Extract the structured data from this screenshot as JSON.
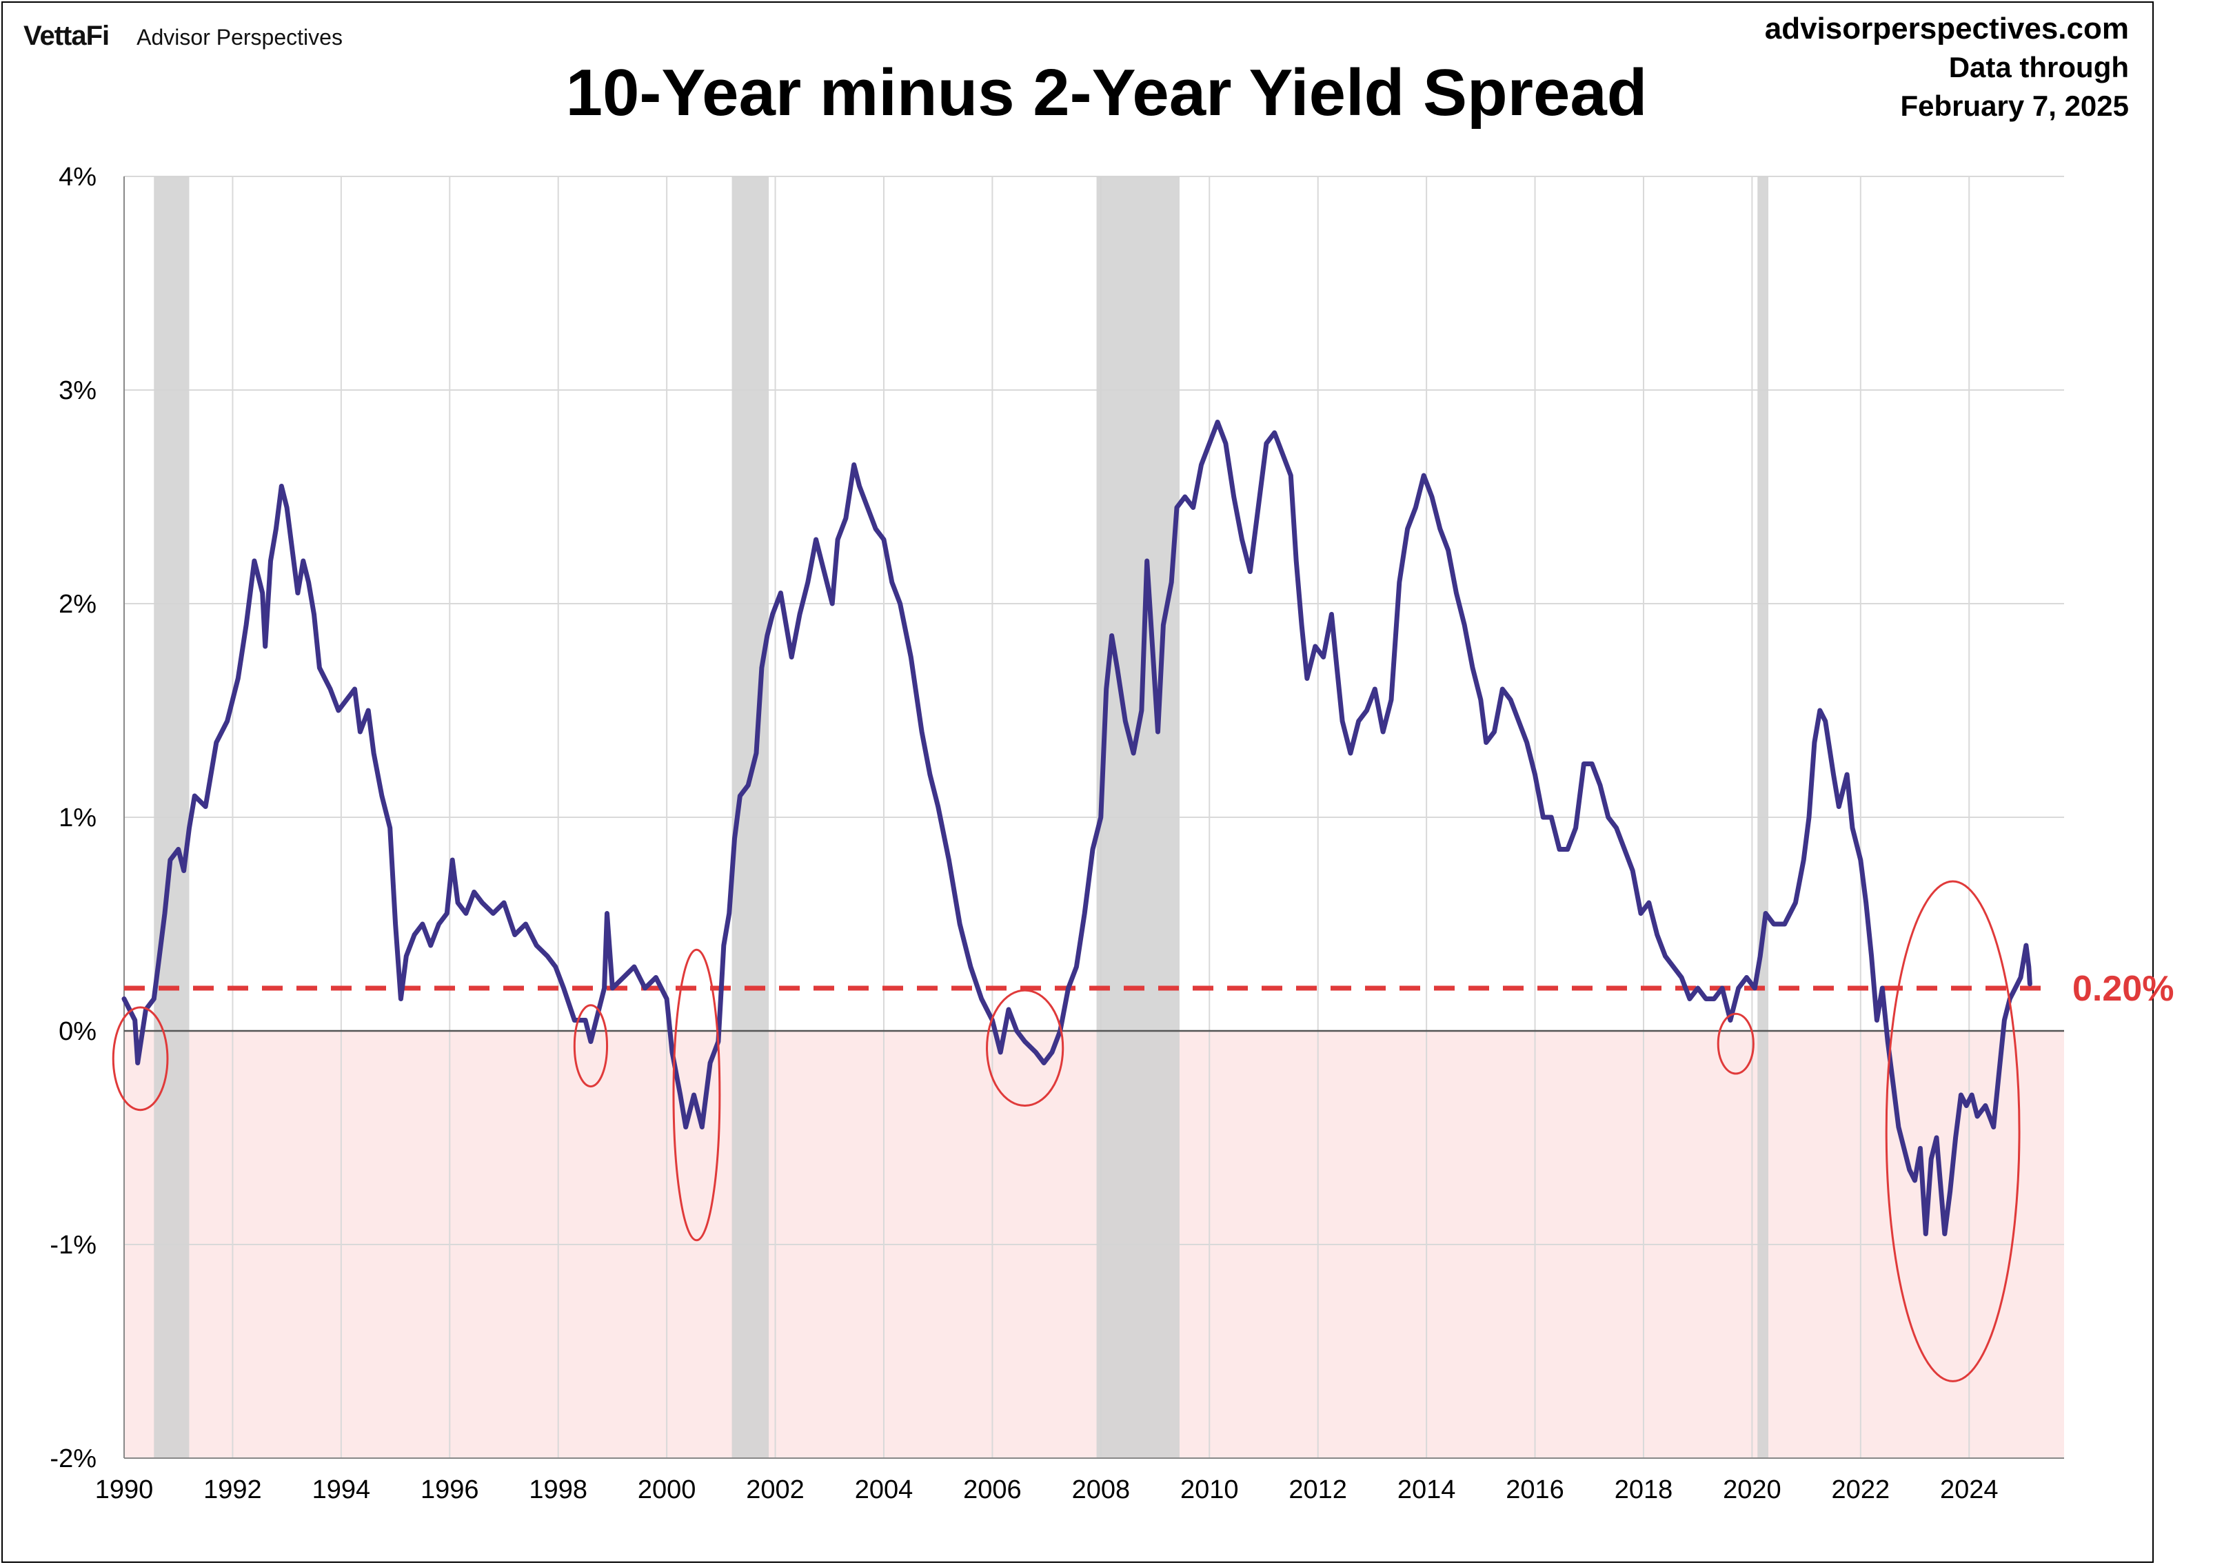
{
  "header": {
    "brand_logo": "VettaFi",
    "brand_name": "Advisor Perspectives",
    "title": "10-Year minus 2-Year Yield Spread",
    "source_site": "advisorperspectives.com",
    "source_line2": "Data through",
    "source_line3": "February 7, 2025"
  },
  "colors": {
    "line": "#3d3389",
    "reference": "#e03a3a",
    "recession": "#d3d3d3",
    "negative_zone": "#fde9e9",
    "grid": "#d9d9d9",
    "circle": "#e03a3a"
  },
  "chart_data": {
    "type": "line",
    "title": "10-Year minus 2-Year Yield Spread",
    "xlabel": "",
    "ylabel": "",
    "xlim": [
      1990.0,
      2025.75
    ],
    "ylim": [
      -2,
      4
    ],
    "x_ticks": [
      1990,
      1992,
      1994,
      1996,
      1998,
      2000,
      2002,
      2004,
      2006,
      2008,
      2010,
      2012,
      2014,
      2016,
      2018,
      2020,
      2022,
      2024
    ],
    "x_tick_labels": [
      "1990",
      "1992",
      "1994",
      "1996",
      "1998",
      "2000",
      "2002",
      "2004",
      "2006",
      "2008",
      "2010",
      "2012",
      "2014",
      "2016",
      "2018",
      "2020",
      "2022",
      "2024"
    ],
    "y_ticks": [
      -2,
      -1,
      0,
      1,
      2,
      3,
      4
    ],
    "y_tick_labels": [
      "-2%",
      "-1%",
      "0%",
      "1%",
      "2%",
      "3%",
      "4%"
    ],
    "grid": true,
    "reference_line": {
      "value": 0.2,
      "label": "0.20%"
    },
    "negative_shading": [
      -2,
      0
    ],
    "recessions": [
      {
        "start": 1990.55,
        "end": 1991.2
      },
      {
        "start": 2001.2,
        "end": 2001.88
      },
      {
        "start": 2007.92,
        "end": 2009.45
      },
      {
        "start": 2020.1,
        "end": 2020.3
      }
    ],
    "highlight_circles": [
      {
        "cx": 1990.3,
        "cy": -0.13,
        "rx": 1.0,
        "ry": 0.24
      },
      {
        "cx": 1998.6,
        "cy": -0.07,
        "rx": 0.6,
        "ry": 0.19
      },
      {
        "cx": 2000.55,
        "cy": -0.3,
        "rx": 0.85,
        "ry": 0.68
      },
      {
        "cx": 2006.6,
        "cy": -0.08,
        "rx": 1.4,
        "ry": 0.27
      },
      {
        "cx": 2019.7,
        "cy": -0.06,
        "rx": 0.65,
        "ry": 0.14
      },
      {
        "cx": 2023.7,
        "cy": -0.47,
        "rx": 2.45,
        "ry": 1.17
      }
    ],
    "series": [
      {
        "values": [
          [
            1990.0,
            0.15
          ],
          [
            1990.2,
            0.05
          ],
          [
            1990.25,
            -0.15
          ],
          [
            1990.4,
            0.1
          ],
          [
            1990.55,
            0.15
          ],
          [
            1990.65,
            0.35
          ],
          [
            1990.75,
            0.55
          ],
          [
            1990.85,
            0.8
          ],
          [
            1991.0,
            0.85
          ],
          [
            1991.1,
            0.75
          ],
          [
            1991.2,
            0.95
          ],
          [
            1991.3,
            1.1
          ],
          [
            1991.5,
            1.05
          ],
          [
            1991.7,
            1.35
          ],
          [
            1991.9,
            1.45
          ],
          [
            1992.1,
            1.65
          ],
          [
            1992.25,
            1.9
          ],
          [
            1992.4,
            2.2
          ],
          [
            1992.55,
            2.05
          ],
          [
            1992.6,
            1.8
          ],
          [
            1992.7,
            2.2
          ],
          [
            1992.8,
            2.35
          ],
          [
            1992.9,
            2.55
          ],
          [
            1993.0,
            2.45
          ],
          [
            1993.1,
            2.25
          ],
          [
            1993.2,
            2.05
          ],
          [
            1993.3,
            2.2
          ],
          [
            1993.4,
            2.1
          ],
          [
            1993.5,
            1.95
          ],
          [
            1993.6,
            1.7
          ],
          [
            1993.7,
            1.65
          ],
          [
            1993.8,
            1.6
          ],
          [
            1993.95,
            1.5
          ],
          [
            1994.1,
            1.55
          ],
          [
            1994.25,
            1.6
          ],
          [
            1994.35,
            1.4
          ],
          [
            1994.5,
            1.5
          ],
          [
            1994.6,
            1.3
          ],
          [
            1994.75,
            1.1
          ],
          [
            1994.9,
            0.95
          ],
          [
            1995.0,
            0.5
          ],
          [
            1995.1,
            0.15
          ],
          [
            1995.2,
            0.35
          ],
          [
            1995.35,
            0.45
          ],
          [
            1995.5,
            0.5
          ],
          [
            1995.65,
            0.4
          ],
          [
            1995.8,
            0.5
          ],
          [
            1995.95,
            0.55
          ],
          [
            1996.05,
            0.8
          ],
          [
            1996.15,
            0.6
          ],
          [
            1996.3,
            0.55
          ],
          [
            1996.45,
            0.65
          ],
          [
            1996.6,
            0.6
          ],
          [
            1996.8,
            0.55
          ],
          [
            1997.0,
            0.6
          ],
          [
            1997.2,
            0.45
          ],
          [
            1997.4,
            0.5
          ],
          [
            1997.6,
            0.4
          ],
          [
            1997.8,
            0.35
          ],
          [
            1997.95,
            0.3
          ],
          [
            1998.1,
            0.2
          ],
          [
            1998.3,
            0.05
          ],
          [
            1998.5,
            0.05
          ],
          [
            1998.6,
            -0.05
          ],
          [
            1998.75,
            0.1
          ],
          [
            1998.85,
            0.2
          ],
          [
            1998.9,
            0.55
          ],
          [
            1999.0,
            0.2
          ],
          [
            1999.2,
            0.25
          ],
          [
            1999.4,
            0.3
          ],
          [
            1999.6,
            0.2
          ],
          [
            1999.8,
            0.25
          ],
          [
            2000.0,
            0.15
          ],
          [
            2000.1,
            -0.1
          ],
          [
            2000.25,
            -0.3
          ],
          [
            2000.35,
            -0.45
          ],
          [
            2000.5,
            -0.3
          ],
          [
            2000.65,
            -0.45
          ],
          [
            2000.8,
            -0.15
          ],
          [
            2000.95,
            -0.05
          ],
          [
            2001.05,
            0.4
          ],
          [
            2001.15,
            0.55
          ],
          [
            2001.25,
            0.9
          ],
          [
            2001.35,
            1.1
          ],
          [
            2001.5,
            1.15
          ],
          [
            2001.65,
            1.3
          ],
          [
            2001.75,
            1.7
          ],
          [
            2001.85,
            1.85
          ],
          [
            2001.95,
            1.95
          ],
          [
            2002.1,
            2.05
          ],
          [
            2002.2,
            1.9
          ],
          [
            2002.3,
            1.75
          ],
          [
            2002.45,
            1.95
          ],
          [
            2002.6,
            2.1
          ],
          [
            2002.75,
            2.3
          ],
          [
            2002.9,
            2.15
          ],
          [
            2003.05,
            2.0
          ],
          [
            2003.15,
            2.3
          ],
          [
            2003.3,
            2.4
          ],
          [
            2003.45,
            2.65
          ],
          [
            2003.55,
            2.55
          ],
          [
            2003.7,
            2.45
          ],
          [
            2003.85,
            2.35
          ],
          [
            2004.0,
            2.3
          ],
          [
            2004.15,
            2.1
          ],
          [
            2004.3,
            2.0
          ],
          [
            2004.5,
            1.75
          ],
          [
            2004.7,
            1.4
          ],
          [
            2004.85,
            1.2
          ],
          [
            2005.0,
            1.05
          ],
          [
            2005.2,
            0.8
          ],
          [
            2005.4,
            0.5
          ],
          [
            2005.6,
            0.3
          ],
          [
            2005.8,
            0.15
          ],
          [
            2006.0,
            0.05
          ],
          [
            2006.15,
            -0.1
          ],
          [
            2006.3,
            0.1
          ],
          [
            2006.45,
            0.0
          ],
          [
            2006.6,
            -0.05
          ],
          [
            2006.8,
            -0.1
          ],
          [
            2006.95,
            -0.15
          ],
          [
            2007.1,
            -0.1
          ],
          [
            2007.25,
            0.0
          ],
          [
            2007.4,
            0.2
          ],
          [
            2007.55,
            0.3
          ],
          [
            2007.7,
            0.55
          ],
          [
            2007.85,
            0.85
          ],
          [
            2008.0,
            1.0
          ],
          [
            2008.1,
            1.6
          ],
          [
            2008.2,
            1.85
          ],
          [
            2008.3,
            1.7
          ],
          [
            2008.45,
            1.45
          ],
          [
            2008.6,
            1.3
          ],
          [
            2008.75,
            1.5
          ],
          [
            2008.85,
            2.2
          ],
          [
            2008.95,
            1.8
          ],
          [
            2009.05,
            1.4
          ],
          [
            2009.15,
            1.9
          ],
          [
            2009.3,
            2.1
          ],
          [
            2009.4,
            2.45
          ],
          [
            2009.55,
            2.5
          ],
          [
            2009.7,
            2.45
          ],
          [
            2009.85,
            2.65
          ],
          [
            2010.0,
            2.75
          ],
          [
            2010.15,
            2.85
          ],
          [
            2010.3,
            2.75
          ],
          [
            2010.45,
            2.5
          ],
          [
            2010.6,
            2.3
          ],
          [
            2010.75,
            2.15
          ],
          [
            2010.9,
            2.45
          ],
          [
            2011.05,
            2.75
          ],
          [
            2011.2,
            2.8
          ],
          [
            2011.35,
            2.7
          ],
          [
            2011.5,
            2.6
          ],
          [
            2011.6,
            2.2
          ],
          [
            2011.7,
            1.9
          ],
          [
            2011.8,
            1.65
          ],
          [
            2011.95,
            1.8
          ],
          [
            2012.1,
            1.75
          ],
          [
            2012.25,
            1.95
          ],
          [
            2012.35,
            1.7
          ],
          [
            2012.45,
            1.45
          ],
          [
            2012.6,
            1.3
          ],
          [
            2012.75,
            1.45
          ],
          [
            2012.9,
            1.5
          ],
          [
            2013.05,
            1.6
          ],
          [
            2013.2,
            1.4
          ],
          [
            2013.35,
            1.55
          ],
          [
            2013.5,
            2.1
          ],
          [
            2013.65,
            2.35
          ],
          [
            2013.8,
            2.45
          ],
          [
            2013.95,
            2.6
          ],
          [
            2014.1,
            2.5
          ],
          [
            2014.25,
            2.35
          ],
          [
            2014.4,
            2.25
          ],
          [
            2014.55,
            2.05
          ],
          [
            2014.7,
            1.9
          ],
          [
            2014.85,
            1.7
          ],
          [
            2015.0,
            1.55
          ],
          [
            2015.1,
            1.35
          ],
          [
            2015.25,
            1.4
          ],
          [
            2015.4,
            1.6
          ],
          [
            2015.55,
            1.55
          ],
          [
            2015.7,
            1.45
          ],
          [
            2015.85,
            1.35
          ],
          [
            2016.0,
            1.2
          ],
          [
            2016.15,
            1.0
          ],
          [
            2016.3,
            1.0
          ],
          [
            2016.45,
            0.85
          ],
          [
            2016.6,
            0.85
          ],
          [
            2016.75,
            0.95
          ],
          [
            2016.9,
            1.25
          ],
          [
            2017.05,
            1.25
          ],
          [
            2017.2,
            1.15
          ],
          [
            2017.35,
            1.0
          ],
          [
            2017.5,
            0.95
          ],
          [
            2017.65,
            0.85
          ],
          [
            2017.8,
            0.75
          ],
          [
            2017.95,
            0.55
          ],
          [
            2018.1,
            0.6
          ],
          [
            2018.25,
            0.45
          ],
          [
            2018.4,
            0.35
          ],
          [
            2018.55,
            0.3
          ],
          [
            2018.7,
            0.25
          ],
          [
            2018.85,
            0.15
          ],
          [
            2019.0,
            0.2
          ],
          [
            2019.15,
            0.15
          ],
          [
            2019.3,
            0.15
          ],
          [
            2019.45,
            0.2
          ],
          [
            2019.6,
            0.05
          ],
          [
            2019.75,
            0.2
          ],
          [
            2019.9,
            0.25
          ],
          [
            2020.05,
            0.2
          ],
          [
            2020.15,
            0.35
          ],
          [
            2020.25,
            0.55
          ],
          [
            2020.4,
            0.5
          ],
          [
            2020.6,
            0.5
          ],
          [
            2020.8,
            0.6
          ],
          [
            2020.95,
            0.8
          ],
          [
            2021.05,
            1.0
          ],
          [
            2021.15,
            1.35
          ],
          [
            2021.25,
            1.5
          ],
          [
            2021.35,
            1.45
          ],
          [
            2021.5,
            1.2
          ],
          [
            2021.6,
            1.05
          ],
          [
            2021.75,
            1.2
          ],
          [
            2021.85,
            0.95
          ],
          [
            2022.0,
            0.8
          ],
          [
            2022.1,
            0.6
          ],
          [
            2022.2,
            0.35
          ],
          [
            2022.3,
            0.05
          ],
          [
            2022.4,
            0.2
          ],
          [
            2022.5,
            -0.05
          ],
          [
            2022.6,
            -0.25
          ],
          [
            2022.7,
            -0.45
          ],
          [
            2022.8,
            -0.55
          ],
          [
            2022.9,
            -0.65
          ],
          [
            2023.0,
            -0.7
          ],
          [
            2023.1,
            -0.55
          ],
          [
            2023.2,
            -0.95
          ],
          [
            2023.3,
            -0.6
          ],
          [
            2023.4,
            -0.5
          ],
          [
            2023.55,
            -0.95
          ],
          [
            2023.65,
            -0.75
          ],
          [
            2023.75,
            -0.5
          ],
          [
            2023.85,
            -0.3
          ],
          [
            2023.95,
            -0.35
          ],
          [
            2024.05,
            -0.3
          ],
          [
            2024.15,
            -0.4
          ],
          [
            2024.3,
            -0.35
          ],
          [
            2024.45,
            -0.45
          ],
          [
            2024.55,
            -0.2
          ],
          [
            2024.65,
            0.05
          ],
          [
            2024.75,
            0.15
          ],
          [
            2024.85,
            0.2
          ],
          [
            2024.95,
            0.25
          ],
          [
            2025.05,
            0.4
          ],
          [
            2025.1,
            0.3
          ],
          [
            2025.12,
            0.22
          ]
        ]
      }
    ]
  }
}
